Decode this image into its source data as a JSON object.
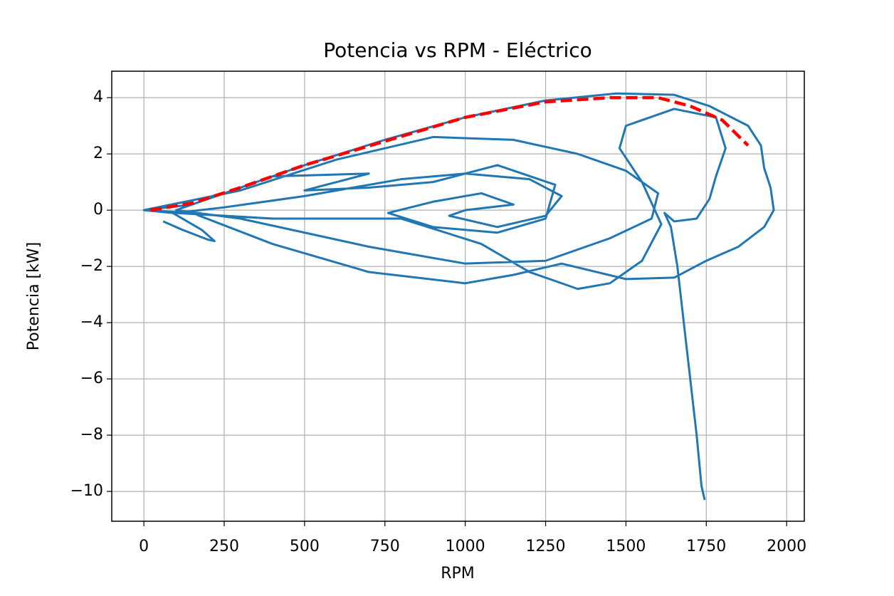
{
  "chart_data": {
    "type": "line",
    "title": "Potencia vs RPM - Eléctrico",
    "x_label": "RPM",
    "y_label": "Potencia [kW]",
    "series": [
      {
        "color": "#1f77b4",
        "linestyle": "solid",
        "x": [
          60,
          120,
          200,
          220,
          180,
          90,
          0,
          150,
          300,
          500,
          750,
          1000,
          1250,
          1470,
          1650,
          1760,
          1880,
          1920,
          1930,
          1950,
          1960,
          1930,
          1850,
          1750,
          1650,
          1500,
          1300,
          1150,
          1000,
          700,
          400,
          150,
          0,
          300,
          600,
          900,
          1150,
          1350,
          1500,
          1600,
          1580,
          1450,
          1250,
          1000,
          700,
          300,
          100,
          400,
          700,
          500,
          700,
          900,
          1100,
          1280,
          1250,
          1100,
          900,
          760,
          900,
          1050,
          1150,
          1000,
          950,
          1100,
          1250,
          1300,
          1200,
          1000,
          800,
          500,
          250,
          100,
          400,
          800,
          1050,
          1200,
          1350,
          1450,
          1550,
          1610,
          1550,
          1480,
          1500,
          1650,
          1780,
          1810,
          1780,
          1760,
          1720,
          1650,
          1620,
          1640,
          1660,
          1680,
          1700,
          1720,
          1735,
          1745
        ],
        "values": [
          -0.4,
          -0.7,
          -1.05,
          -1.1,
          -0.7,
          -0.1,
          0,
          0.2,
          0.8,
          1.6,
          2.5,
          3.3,
          3.9,
          4.15,
          4.1,
          3.7,
          3.0,
          2.3,
          1.5,
          0.8,
          0.0,
          -0.6,
          -1.3,
          -1.8,
          -2.4,
          -2.45,
          -1.9,
          -2.3,
          -2.6,
          -2.2,
          -1.2,
          -0.1,
          0,
          0.7,
          1.8,
          2.6,
          2.5,
          2.0,
          1.4,
          0.6,
          -0.3,
          -1.0,
          -1.8,
          -1.9,
          -1.3,
          -0.3,
          0,
          1.2,
          1.3,
          0.7,
          0.8,
          1.0,
          1.6,
          0.9,
          -0.3,
          -0.8,
          -0.6,
          -0.1,
          0.3,
          0.6,
          0.2,
          0.0,
          -0.2,
          -0.6,
          -0.2,
          0.5,
          1.1,
          1.3,
          1.1,
          0.5,
          0.1,
          -0.1,
          -0.3,
          -0.3,
          -1.2,
          -2.2,
          -2.8,
          -2.6,
          -1.8,
          -0.5,
          1.0,
          2.2,
          3.0,
          3.6,
          3.3,
          2.2,
          1.2,
          0.4,
          -0.3,
          -0.4,
          -0.1,
          -0.6,
          -2.0,
          -4.0,
          -6.0,
          -8.0,
          -9.8,
          -10.3
        ]
      },
      {
        "color": "#ff0000",
        "linestyle": "dashed",
        "x": [
          20,
          150,
          300,
          500,
          750,
          1000,
          1250,
          1450,
          1600,
          1700,
          1800,
          1880
        ],
        "values": [
          0,
          0.25,
          0.8,
          1.6,
          2.45,
          3.3,
          3.85,
          4.0,
          4.0,
          3.7,
          3.2,
          2.3
        ]
      }
    ],
    "xlim": [
      -100,
      2055
    ],
    "ylim": [
      -11.06,
      4.94
    ],
    "xticks": [
      0,
      250,
      500,
      750,
      1000,
      1250,
      1500,
      1750,
      2000
    ],
    "yticks": [
      {
        "value": -10,
        "label": "−10"
      },
      {
        "value": -8,
        "label": "−8"
      },
      {
        "value": -6,
        "label": "−6"
      },
      {
        "value": -4,
        "label": "−4"
      },
      {
        "value": -2,
        "label": "−2"
      },
      0,
      2,
      4
    ],
    "grid": true
  }
}
